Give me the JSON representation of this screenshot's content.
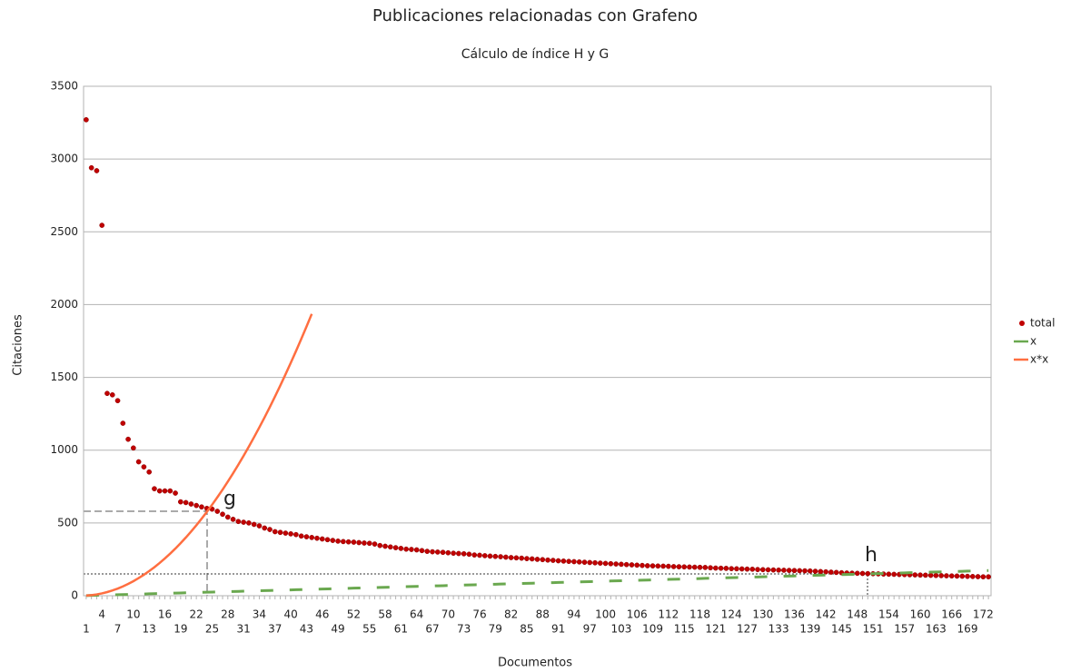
{
  "chart_data": {
    "type": "line",
    "title": "Publicaciones relacionadas con Grafeno",
    "subtitle": "Cálculo de índice H y G",
    "x_label": "Documentos",
    "y_label": "Citaciones",
    "annotations": [
      "g",
      "h"
    ],
    "grid": true,
    "legend": "right",
    "ylim": [
      0,
      3500
    ],
    "yticks": [
      0,
      500,
      1000,
      1500,
      2000,
      2500,
      3000,
      3500
    ],
    "categories": [
      1,
      null,
      null,
      4,
      null,
      null,
      7,
      null,
      null,
      10,
      null,
      null,
      13,
      null,
      null,
      16,
      null,
      null,
      19,
      null,
      null,
      22,
      null,
      null,
      25,
      null,
      null,
      28,
      null,
      null,
      31,
      null,
      null,
      34,
      null,
      null,
      37,
      null,
      null,
      40,
      null,
      null,
      43,
      null,
      null,
      46,
      null,
      null,
      49,
      null,
      null,
      52,
      null,
      null,
      55,
      null,
      null,
      58,
      null,
      null,
      61,
      null,
      null,
      64,
      null,
      null,
      67,
      null,
      null,
      70,
      null,
      null,
      73,
      null,
      null,
      76,
      null,
      null,
      79,
      null,
      null,
      82,
      null,
      null,
      85,
      null,
      null,
      88,
      null,
      null,
      91,
      null,
      null,
      94,
      null,
      null,
      97,
      null,
      null,
      100,
      null,
      null,
      103,
      null,
      null,
      106,
      null,
      null,
      109,
      null,
      null,
      112,
      null,
      null,
      115,
      null,
      null,
      118,
      null,
      null,
      121,
      null,
      null,
      124,
      null,
      null,
      127,
      null,
      null,
      130,
      null,
      null,
      133,
      null,
      null,
      136,
      null,
      null,
      139,
      null,
      null,
      142,
      null,
      null,
      145,
      null,
      null,
      148,
      null,
      null,
      151,
      null,
      null,
      154,
      null,
      null,
      157,
      null,
      null,
      160,
      null,
      null,
      163,
      null,
      null,
      166,
      null,
      null,
      169,
      null,
      null,
      172,
      null
    ],
    "series": [
      {
        "name": "total",
        "color": "#c00000",
        "style": "points",
        "values": [
          3270,
          2940,
          2920,
          2545,
          1390,
          1380,
          1340,
          1185,
          1075,
          1015,
          920,
          885,
          850,
          735,
          720,
          720,
          720,
          705,
          645,
          640,
          630,
          620,
          610,
          600,
          595,
          580,
          560,
          540,
          525,
          510,
          505,
          500,
          490,
          480,
          465,
          455,
          440,
          435,
          430,
          425,
          420,
          410,
          405,
          400,
          395,
          390,
          385,
          380,
          375,
          372,
          370,
          368,
          365,
          362,
          360,
          355,
          345,
          340,
          335,
          330,
          325,
          320,
          318,
          315,
          310,
          305,
          302,
          300,
          298,
          295,
          292,
          290,
          288,
          285,
          280,
          278,
          275,
          272,
          270,
          268,
          265,
          262,
          260,
          258,
          255,
          253,
          250,
          248,
          245,
          243,
          240,
          238,
          236,
          234,
          232,
          230,
          228,
          226,
          224,
          222,
          220,
          218,
          216,
          214,
          212,
          210,
          208,
          206,
          205,
          204,
          203,
          202,
          200,
          199,
          198,
          197,
          196,
          195,
          194,
          192,
          190,
          189,
          188,
          186,
          185,
          184,
          183,
          182,
          180,
          179,
          178,
          177,
          176,
          175,
          174,
          173,
          172,
          171,
          170,
          168,
          166,
          164,
          162,
          160,
          158,
          156,
          155,
          154,
          153,
          152,
          151,
          150,
          149,
          148,
          147,
          146,
          145,
          144,
          143,
          142,
          141,
          140,
          139,
          138,
          137,
          136,
          135,
          134,
          133,
          132,
          131,
          130,
          130
        ]
      },
      {
        "name": "x",
        "color": "#6aa84f",
        "style": "dashed",
        "values": [
          1,
          2,
          3,
          4,
          5,
          6,
          7,
          8,
          9,
          10,
          11,
          12,
          13,
          14,
          15,
          16,
          17,
          18,
          19,
          20,
          21,
          22,
          23,
          24,
          25,
          26,
          27,
          28,
          29,
          30,
          31,
          32,
          33,
          34,
          35,
          36,
          37,
          38,
          39,
          40,
          41,
          42,
          43,
          44,
          45,
          46,
          47,
          48,
          49,
          50,
          51,
          52,
          53,
          54,
          55,
          56,
          57,
          58,
          59,
          60,
          61,
          62,
          63,
          64,
          65,
          66,
          67,
          68,
          69,
          70,
          71,
          72,
          73,
          74,
          75,
          76,
          77,
          78,
          79,
          80,
          81,
          82,
          83,
          84,
          85,
          86,
          87,
          88,
          89,
          90,
          91,
          92,
          93,
          94,
          95,
          96,
          97,
          98,
          99,
          100,
          101,
          102,
          103,
          104,
          105,
          106,
          107,
          108,
          109,
          110,
          111,
          112,
          113,
          114,
          115,
          116,
          117,
          118,
          119,
          120,
          121,
          122,
          123,
          124,
          125,
          126,
          127,
          128,
          129,
          130,
          131,
          132,
          133,
          134,
          135,
          136,
          137,
          138,
          139,
          140,
          141,
          142,
          143,
          144,
          145,
          146,
          147,
          148,
          149,
          150,
          151,
          152,
          153,
          154,
          155,
          156,
          157,
          158,
          159,
          160,
          161,
          162,
          163,
          164,
          165,
          166,
          167,
          168,
          169,
          170,
          171,
          172,
          173
        ]
      },
      {
        "name": "x*x",
        "color": "#ff6e40",
        "style": "solid",
        "values": [
          1,
          4,
          9,
          16,
          25,
          36,
          49,
          64,
          81,
          100,
          121,
          144,
          169,
          196,
          225,
          256,
          289,
          324,
          361,
          400,
          441,
          484,
          529,
          576,
          625,
          676,
          729,
          784,
          841,
          900,
          961,
          1024,
          1089,
          1156,
          1225,
          1296,
          1369,
          1444,
          1521,
          1600,
          1681,
          1764,
          1849,
          1936,
          null,
          null,
          null,
          null,
          null,
          null,
          null,
          null,
          null,
          null,
          null,
          null,
          null,
          null,
          null,
          null,
          null,
          null,
          null,
          null,
          null,
          null,
          null,
          null,
          null,
          null,
          null,
          null,
          null,
          null,
          null,
          null,
          null,
          null,
          null,
          null,
          null,
          null,
          null,
          null,
          null,
          null,
          null,
          null,
          null,
          null,
          null,
          null,
          null,
          null,
          null,
          null,
          null,
          null,
          null,
          null,
          null,
          null,
          null,
          null,
          null,
          null,
          null,
          null,
          null,
          null,
          null,
          null,
          null,
          null,
          null,
          null,
          null,
          null,
          null,
          null,
          null,
          null,
          null,
          null,
          null,
          null,
          null,
          null,
          null,
          null,
          null,
          null,
          null,
          null,
          null,
          null,
          null,
          null,
          null,
          null,
          null,
          null,
          null,
          null,
          null,
          null,
          null,
          null,
          null,
          null,
          null,
          null,
          null,
          null,
          null,
          null,
          null,
          null,
          null,
          null,
          null,
          null,
          null,
          null,
          null,
          null,
          null,
          null,
          null,
          null,
          null,
          null,
          null
        ]
      }
    ]
  }
}
